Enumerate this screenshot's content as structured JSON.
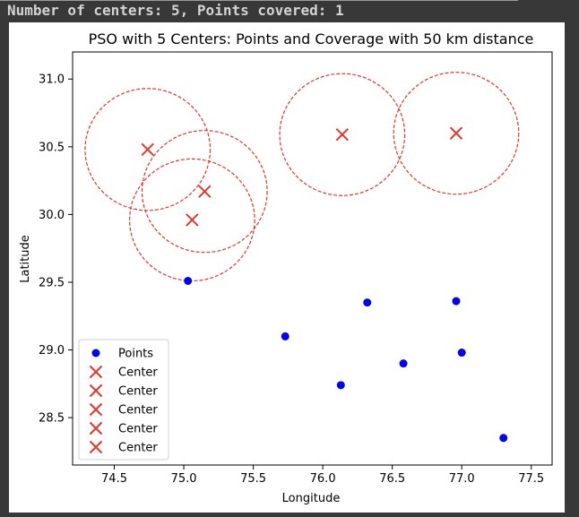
{
  "console": {
    "output_line": "Number of centers: 5, Points covered: 1"
  },
  "chart_data": {
    "type": "scatter",
    "title": "PSO with 5 Centers: Points and Coverage with 50 km distance",
    "xlabel": "Longitude",
    "ylabel": "Latitude",
    "xlim": [
      74.2,
      77.65
    ],
    "ylim": [
      28.15,
      31.2
    ],
    "xticks": [
      74.5,
      75.0,
      75.5,
      76.0,
      76.5,
      77.0,
      77.5
    ],
    "yticks": [
      28.5,
      29.0,
      29.5,
      30.0,
      30.5,
      31.0
    ],
    "xtick_labels": [
      "74.5",
      "75.0",
      "75.5",
      "76.0",
      "76.5",
      "77.0",
      "77.5"
    ],
    "ytick_labels": [
      "28.5",
      "29.0",
      "29.5",
      "30.0",
      "30.5",
      "31.0"
    ],
    "grid": false,
    "legend_position": "lower-left",
    "coverage_radius_deg": 0.45,
    "points": {
      "name": "Points",
      "color": "#0000ff",
      "marker": "circle",
      "x": [
        75.03,
        75.73,
        76.13,
        76.32,
        76.58,
        76.96,
        77.0,
        77.3
      ],
      "y": [
        29.51,
        29.1,
        28.74,
        29.35,
        28.9,
        29.36,
        28.98,
        28.35
      ]
    },
    "centers": [
      {
        "name": "Center",
        "x": 74.74,
        "y": 30.48
      },
      {
        "name": "Center",
        "x": 75.15,
        "y": 30.17
      },
      {
        "name": "Center",
        "x": 75.06,
        "y": 29.96
      },
      {
        "name": "Center",
        "x": 76.14,
        "y": 30.59
      },
      {
        "name": "Center",
        "x": 76.96,
        "y": 30.6
      }
    ],
    "center_color": "#e8352a",
    "circle_color": "#e8352a",
    "legend": [
      "Points",
      "Center",
      "Center",
      "Center",
      "Center",
      "Center"
    ]
  }
}
